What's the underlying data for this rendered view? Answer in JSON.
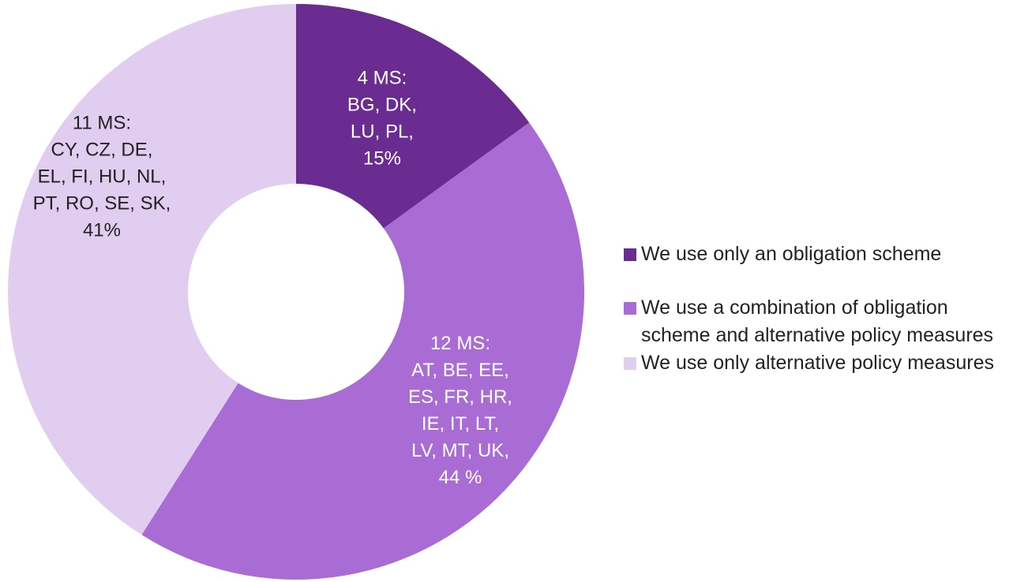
{
  "chart_data": {
    "type": "pie",
    "donut": true,
    "categories": [
      "We use only an obligation scheme",
      "We use a combination of obligation scheme and alternative policy measures",
      "We use only alternative policy measures"
    ],
    "values": [
      15,
      44,
      41
    ],
    "value_labels": [
      "15%",
      "44 %",
      "41%"
    ],
    "annotations": [
      [
        "4 MS:",
        "BG, DK,",
        "LU, PL,"
      ],
      [
        "12 MS:",
        "AT, BE, EE,",
        "ES, FR, HR,",
        "IE, IT, LT,",
        "LV, MT, UK,"
      ],
      [
        "11 MS:",
        "CY, CZ, DE,",
        "EL, FI, HU, NL,",
        "PT, RO, SE, SK,"
      ]
    ],
    "colors": [
      "#6b2c91",
      "#a86cd4",
      "#e0cdef"
    ],
    "legend": "right"
  }
}
